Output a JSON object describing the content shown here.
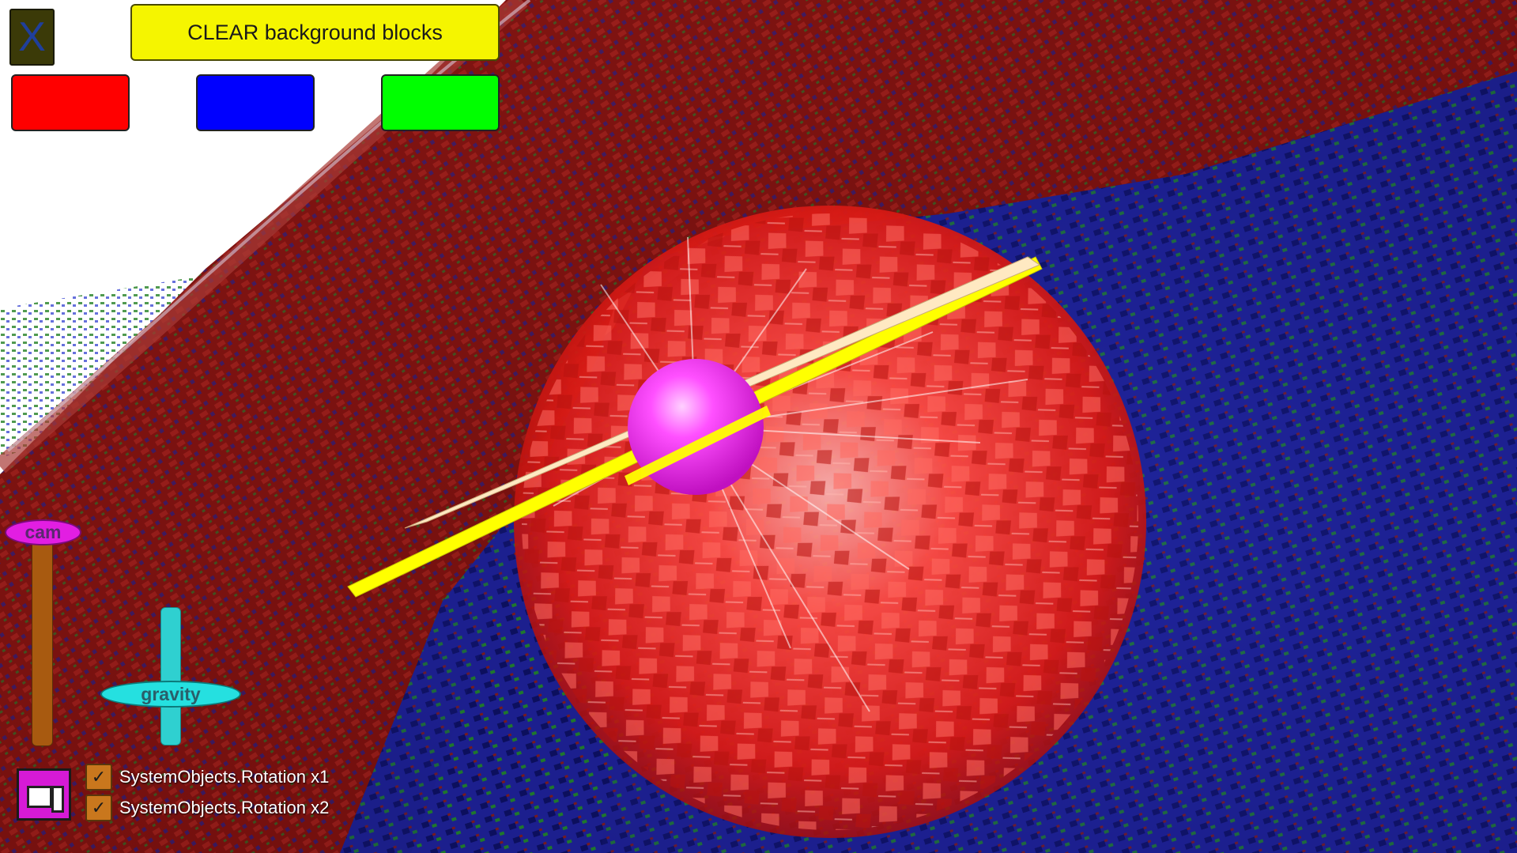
{
  "toolbar": {
    "close_label": "X",
    "clear_label": "CLEAR background blocks",
    "color_buttons": [
      {
        "name": "red",
        "color": "#ff0000"
      },
      {
        "name": "blue",
        "color": "#0000ff"
      },
      {
        "name": "green",
        "color": "#00ff00"
      }
    ]
  },
  "sliders": {
    "cam": {
      "label": "cam",
      "track_color": "#a85a10",
      "knob_color": "#e21ee2"
    },
    "gravity": {
      "label": "gravity",
      "track_color": "#2fd0d0",
      "knob_color": "#25e0e0"
    }
  },
  "options": {
    "icon": "window-panel-icon",
    "rows": [
      {
        "label": "SystemObjects.Rotation x1",
        "checked": true
      },
      {
        "label": "SystemObjects.Rotation x2",
        "checked": true
      }
    ]
  },
  "scene": {
    "colors": {
      "wall": "#7d1210",
      "floor": "#1c1f8e",
      "hotspot": "#ff3a3a",
      "sphere": "#ff40ff",
      "beam": "#ffff00",
      "plank": "#ffe9c2"
    }
  }
}
